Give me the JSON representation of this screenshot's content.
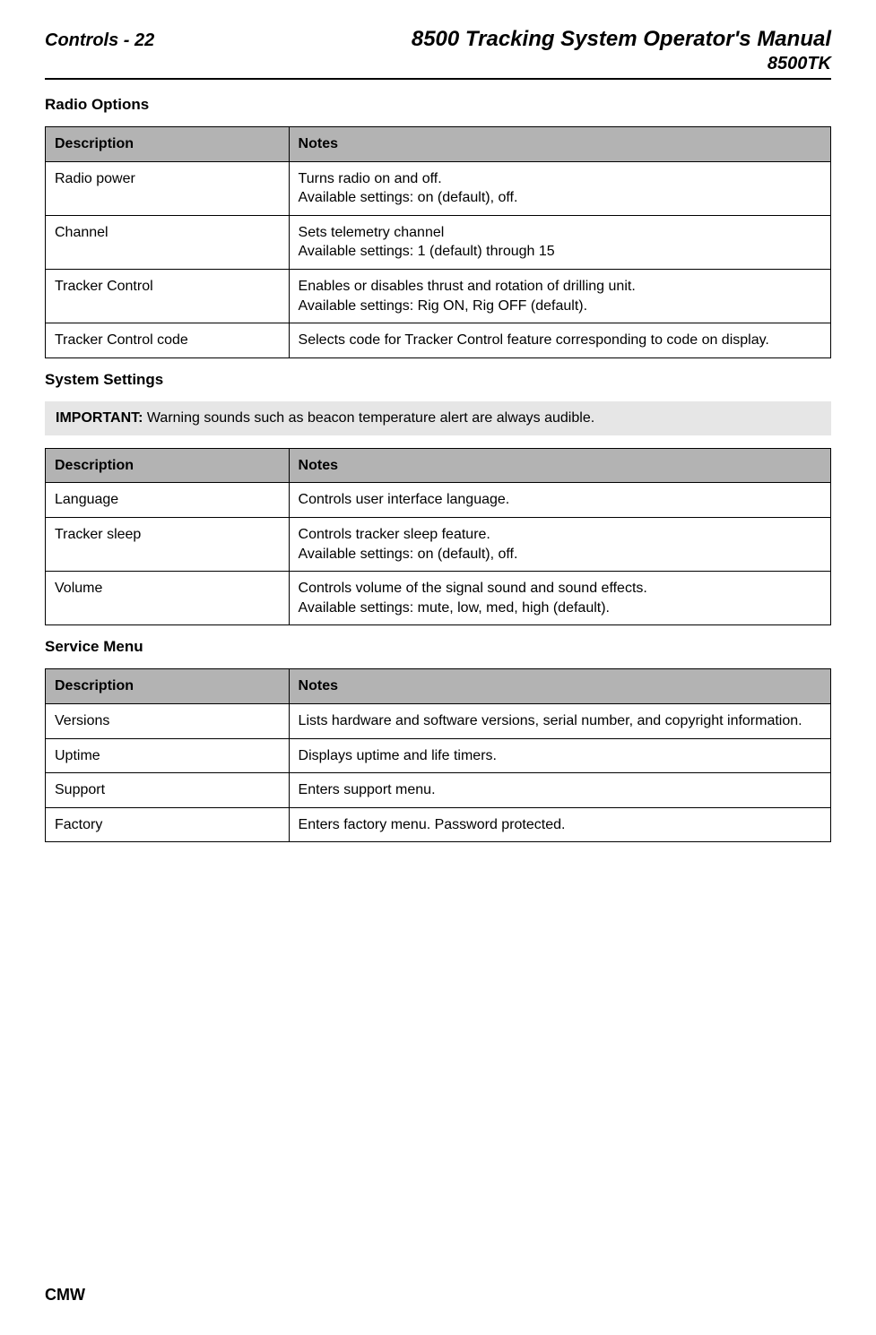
{
  "header": {
    "left": "Controls - 22",
    "right_title": "8500 Tracking System Operator's Manual",
    "right_sub": "8500TK"
  },
  "sections": {
    "radio": {
      "title": "Radio Options",
      "col_desc": "Description",
      "col_notes": "Notes",
      "rows": [
        {
          "desc": "Radio power",
          "notes": "Turns radio on and off.\nAvailable settings: on (default), off."
        },
        {
          "desc": "Channel",
          "notes": "Sets telemetry channel\nAvailable settings: 1 (default) through 15"
        },
        {
          "desc": "Tracker Control",
          "notes": "Enables or disables thrust and rotation of drilling unit.\nAvailable settings: Rig ON, Rig OFF (default)."
        },
        {
          "desc": "Tracker Control code",
          "notes": "Selects code for Tracker Control feature corresponding to code on display."
        }
      ]
    },
    "system": {
      "title": "System Settings",
      "important_label": "IMPORTANT:",
      "important_text": " Warning sounds such as beacon temperature alert are always audible.",
      "col_desc": "Description",
      "col_notes": "Notes",
      "rows": [
        {
          "desc": "Language",
          "notes": "Controls user interface language."
        },
        {
          "desc": "Tracker sleep",
          "notes": "Controls tracker sleep feature.\nAvailable settings: on (default), off."
        },
        {
          "desc": "Volume",
          "notes": "Controls volume of the signal sound and sound effects.\nAvailable settings: mute, low, med, high (default)."
        }
      ]
    },
    "service": {
      "title": "Service Menu",
      "col_desc": "Description",
      "col_notes": "Notes",
      "rows": [
        {
          "desc": "Versions",
          "notes": "Lists hardware and software versions, serial number, and copyright information."
        },
        {
          "desc": "Uptime",
          "notes": "Displays uptime and life timers."
        },
        {
          "desc": "Support",
          "notes": "Enters support menu."
        },
        {
          "desc": "Factory",
          "notes": "Enters factory menu. Password protected."
        }
      ]
    }
  },
  "footer": "CMW",
  "styles": {
    "header_bg": "#b3b3b3",
    "important_bg": "#e6e6e6",
    "border_color": "#000000",
    "page_bg": "#ffffff",
    "text_color": "#000000"
  }
}
